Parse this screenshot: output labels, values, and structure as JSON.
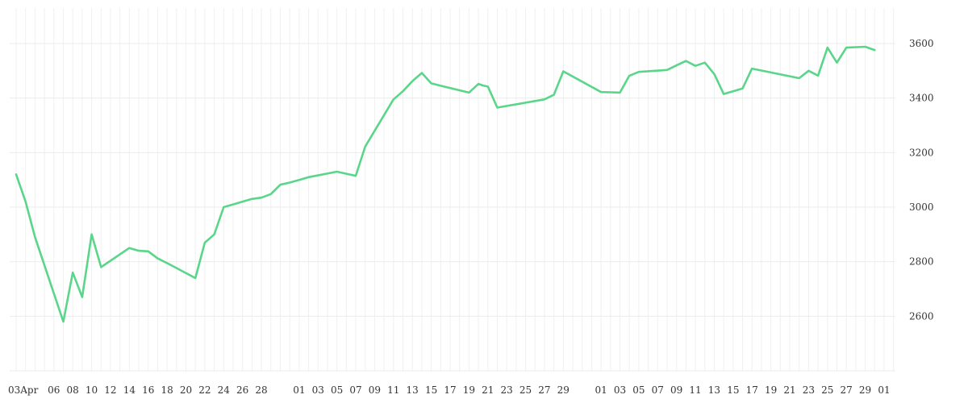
{
  "chart_data": {
    "type": "line",
    "title": "",
    "xlabel": "",
    "ylabel": "",
    "ylim": [
      2400,
      3730
    ],
    "y_ticks": [
      2600,
      2800,
      3000,
      3200,
      3400,
      3600
    ],
    "y_axis_position": "right",
    "grid": true,
    "legend": "none",
    "line_color": "#5ad68a",
    "x_tick_labels": [
      "03Apr",
      "06",
      "08",
      "10",
      "12",
      "14",
      "16",
      "18",
      "20",
      "22",
      "24",
      "26",
      "28",
      "01",
      "03",
      "05",
      "07",
      "09",
      "11",
      "13",
      "15",
      "17",
      "19",
      "21",
      "23",
      "25",
      "27",
      "29",
      "01",
      "03",
      "05",
      "07",
      "09",
      "11",
      "13",
      "15",
      "17",
      "19",
      "21",
      "23",
      "25",
      "27",
      "29",
      "01"
    ],
    "x_tick_index": [
      0,
      2,
      3,
      4,
      5,
      6,
      7,
      8,
      9,
      10,
      11,
      12,
      13,
      15,
      16,
      17,
      18,
      19,
      20,
      21,
      22,
      23,
      24,
      25,
      26,
      27,
      28,
      29,
      31,
      32,
      33,
      34,
      35,
      36,
      37,
      38,
      39,
      40,
      41,
      42,
      43,
      44,
      45,
      46
    ],
    "x_index_max": 46.6,
    "series": [
      {
        "x": [
          0,
          0.5,
          1,
          2.5,
          3,
          3.5,
          4,
          4.5,
          6,
          6.5,
          7,
          7.5,
          8,
          9.5,
          10,
          10.5,
          11,
          11.5,
          12.5,
          13,
          13.5,
          14,
          14.5,
          15,
          15.5,
          17,
          18,
          18.5,
          19,
          20,
          20.5,
          21,
          21.5,
          22,
          22.5,
          24,
          24.5,
          24.75,
          25,
          25.5,
          28,
          28.5,
          29,
          31,
          31.5,
          32,
          32.5,
          33,
          34.5,
          35,
          35.5,
          36,
          36.5,
          37,
          37.5,
          38,
          38.5,
          39,
          41.5,
          42,
          42.5,
          43,
          43.5,
          44,
          45,
          45.5
        ],
        "y": [
          3120,
          3020,
          2890,
          2580,
          2760,
          2670,
          2900,
          2780,
          2850,
          2840,
          2838,
          2812,
          2795,
          2740,
          2870,
          2900,
          3000,
          3010,
          3030,
          3035,
          3048,
          3082,
          3090,
          3100,
          3110,
          3130,
          3115,
          3222,
          3280,
          3395,
          3425,
          3462,
          3492,
          3454,
          3445,
          3420,
          3452,
          3446,
          3442,
          3365,
          3395,
          3412,
          3498,
          3422,
          3421,
          3420,
          3482,
          3496,
          3503,
          3520,
          3536,
          3518,
          3530,
          3488,
          3415,
          3425,
          3435,
          3508,
          3473,
          3500,
          3482,
          3585,
          3530,
          3585,
          3588,
          3576
        ]
      }
    ]
  }
}
